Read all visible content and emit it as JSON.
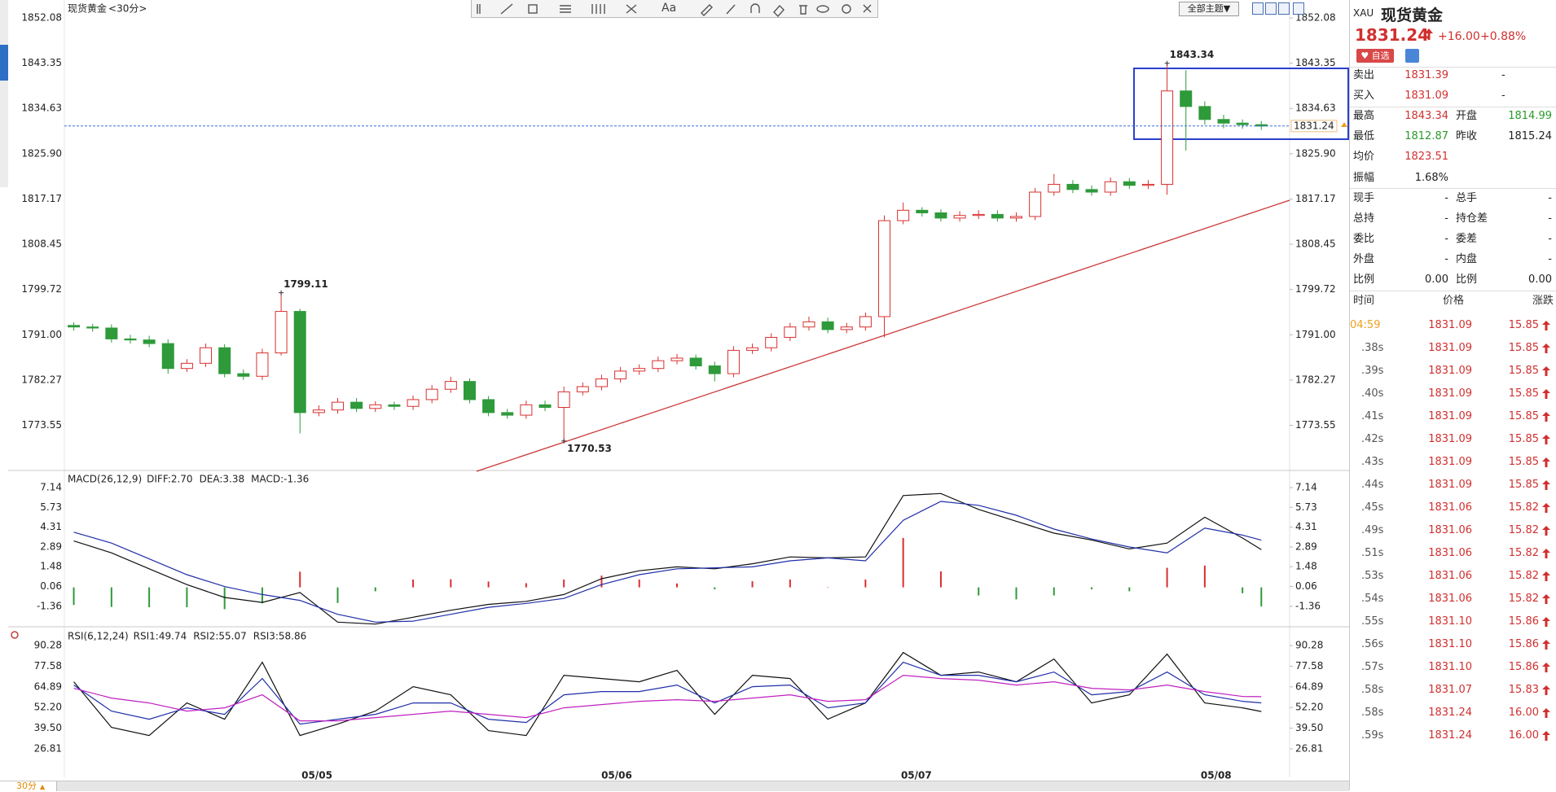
{
  "chart_data": [
    {
      "type": "candlestick",
      "title": "现货黄金",
      "subtitle": "<30分>",
      "up_color": "#d8302f",
      "down_color": "#2e9a3a",
      "xlim": [
        -0.5,
        64.5
      ],
      "ylim": [
        1764.84,
        1855.53
      ],
      "yticks": [
        1852.08,
        1843.35,
        1834.63,
        {
          "value": 1825.9,
          "label": "1825.90"
        },
        1817.17,
        1808.45,
        1799.72,
        {
          "value": 1791,
          "label": "1791.00"
        },
        1782.27,
        1773.55
      ],
      "open": [
        1792.8,
        1792.5,
        1792.3,
        1790.2,
        1790,
        1789.3,
        1784.5,
        1785.5,
        1788.5,
        1783.5,
        1783,
        1787.5,
        1795.5,
        1776,
        1776.5,
        1778,
        1776.8,
        1777.5,
        1777.2,
        1778.5,
        1780.5,
        1782,
        1778.5,
        1776,
        1775.5,
        1777.5,
        1777,
        1780,
        1781,
        1782.5,
        1784,
        1784.5,
        1786,
        1786.5,
        1785,
        1783.5,
        1788,
        1788.5,
        1790.5,
        1792.5,
        1793.5,
        1792,
        1792.5,
        1794.5,
        1813,
        1815,
        1814.5,
        1813.5,
        1814,
        1814.2,
        1813.5,
        1813.8,
        1818.5,
        1820,
        1819,
        1818.5,
        1820.5,
        1819.8,
        1820,
        1838,
        1835,
        1832.5,
        1831.8,
        1831.5
      ],
      "high": [
        1793.4,
        1793.1,
        1793.0,
        1791.0,
        1790.8,
        1790.1,
        1786.3,
        1789.3,
        1789.2,
        1784.3,
        1788.3,
        1799.11,
        1796.0,
        1777.4,
        1778.8,
        1778.8,
        1778.2,
        1778.1,
        1779.3,
        1781.3,
        1782.9,
        1782.6,
        1779.2,
        1776.7,
        1778.3,
        1778.3,
        1781.0,
        1781.8,
        1783.3,
        1784.8,
        1785.3,
        1786.8,
        1787.3,
        1787.2,
        1785.8,
        1788.8,
        1789.3,
        1791.3,
        1793.3,
        1794.5,
        1794.3,
        1793.3,
        1795.3,
        1814.0,
        1816.5,
        1815.6,
        1815.2,
        1814.8,
        1815.0,
        1815.0,
        1814.6,
        1819.3,
        1822.0,
        1820.8,
        1819.8,
        1821.3,
        1821.2,
        1820.8,
        1843.34,
        1842.0,
        1836.0,
        1833.4,
        1832.5,
        1832.2
      ],
      "low": [
        1791.8,
        1791.6,
        1789.5,
        1789.3,
        1788.6,
        1783.5,
        1783.8,
        1784.8,
        1782.8,
        1782.3,
        1782.3,
        1787.0,
        1772.0,
        1775.3,
        1775.8,
        1776.1,
        1776.1,
        1776.5,
        1776.5,
        1777.8,
        1779.8,
        1777.8,
        1775.3,
        1774.8,
        1774.8,
        1776.3,
        1770.53,
        1779.3,
        1780.3,
        1781.8,
        1783.3,
        1783.8,
        1785.3,
        1784.3,
        1782.0,
        1782.8,
        1787.3,
        1787.8,
        1789.8,
        1791.8,
        1791.3,
        1791.3,
        1791.8,
        1790.5,
        1812.3,
        1813.8,
        1812.8,
        1812.8,
        1813.3,
        1812.8,
        1812.8,
        1813.1,
        1817.8,
        1818.3,
        1817.8,
        1817.8,
        1819.1,
        1819.1,
        1818.0,
        1826.5,
        1831.5,
        1830.8,
        1830.7,
        1830.5
      ],
      "close": [
        1792.5,
        1792.3,
        1790.2,
        1790,
        1789.3,
        1784.5,
        1785.5,
        1788.5,
        1783.5,
        1783,
        1787.5,
        1795.5,
        1776,
        1776.5,
        1778,
        1776.8,
        1777.5,
        1777.2,
        1778.5,
        1780.5,
        1782,
        1778.5,
        1776,
        1775.5,
        1777.5,
        1777,
        1780,
        1781,
        1782.5,
        1784,
        1784.5,
        1786,
        1786.5,
        1785,
        1783.5,
        1788,
        1788.5,
        1790.5,
        1792.5,
        1793.5,
        1792,
        1792.5,
        1794.5,
        1813,
        1815,
        1814.5,
        1813.5,
        1814,
        1814.2,
        1813.5,
        1813.8,
        1818.5,
        1820,
        1819,
        1818.5,
        1820.5,
        1819.8,
        1820,
        1838,
        1835,
        1832.5,
        1831.8,
        1831.5,
        1831.24
      ],
      "high_labels": [
        1799.11,
        1843.34
      ],
      "low_labels": [
        1770.53
      ]
    },
    {
      "type": "macd",
      "title": "MACD(26,12,9)",
      "bar_up_color": "#d8302f",
      "bar_down_color": "#2e9a3a",
      "xlim": [
        -0.5,
        64.5
      ],
      "ylim": [
        -2.82,
        8.25
      ],
      "yticks": [
        7.14,
        5.73,
        4.31,
        2.89,
        1.48,
        0.06,
        -1.36
      ],
      "x": [
        0,
        2,
        4,
        6,
        8,
        10,
        12,
        14,
        16,
        18,
        20,
        22,
        24,
        26,
        28,
        30,
        32,
        34,
        36,
        38,
        40,
        42,
        44,
        46,
        48,
        50,
        52,
        54,
        56,
        58,
        60,
        62,
        63
      ],
      "series": [
        {
          "name": "DIFF:2.70",
          "style": "line",
          "color": "#111111",
          "values": [
            3.32,
            2.47,
            1.33,
            0.2,
            -0.72,
            -1.08,
            -0.37,
            -2.49,
            -2.63,
            -2.14,
            -1.64,
            -1.22,
            -1.0,
            -0.51,
            0.62,
            1.19,
            1.47,
            1.33,
            1.69,
            2.18,
            2.11,
            2.18,
            6.57,
            6.72,
            5.58,
            4.73,
            3.88,
            3.39,
            2.75,
            3.17,
            5.02,
            3.53,
            2.7
          ]
        },
        {
          "name": "DEA:3.38",
          "style": "line",
          "color": "#1f2ea8",
          "values": [
            3.95,
            3.17,
            2.04,
            0.91,
            0.06,
            -0.51,
            -0.93,
            -1.93,
            -2.49,
            -2.42,
            -1.93,
            -1.43,
            -1.15,
            -0.79,
            0.2,
            0.91,
            1.33,
            1.4,
            1.47,
            1.9,
            2.11,
            1.9,
            4.8,
            6.15,
            5.87,
            5.16,
            4.17,
            3.46,
            2.89,
            2.47,
            4.24,
            3.74,
            3.38
          ]
        },
        {
          "name": "MACD:-1.36",
          "style": "bar",
          "color": "#d020d0",
          "values": [
            -1.26,
            -1.4,
            -1.42,
            -1.42,
            -1.56,
            -1.14,
            1.12,
            -1.12,
            -0.28,
            0.56,
            0.58,
            0.42,
            0.3,
            0.56,
            0.84,
            0.56,
            0.28,
            -0.14,
            0.44,
            0.56,
            0,
            0.56,
            3.54,
            1.14,
            -0.58,
            -0.86,
            -0.58,
            -0.14,
            -0.28,
            1.4,
            1.56,
            -0.42,
            -1.36
          ]
        }
      ]
    },
    {
      "type": "rsi",
      "title": "RSI(6,12,24)",
      "xlim": [
        -0.5,
        64.5
      ],
      "ylim": [
        9.3,
        100.8
      ],
      "yticks": [
        90.28,
        77.58,
        64.89,
        {
          "value": 52.2,
          "label": "52.20"
        },
        {
          "value": 39.5,
          "label": "39.50"
        },
        26.81
      ],
      "xticks": [
        {
          "value": 12.9,
          "label": "05/05"
        },
        {
          "value": 28.8,
          "label": "05/06"
        },
        {
          "value": 44.7,
          "label": "05/07"
        },
        {
          "value": 60.6,
          "label": "05/08"
        }
      ],
      "x": [
        0,
        2,
        4,
        6,
        8,
        10,
        12,
        14,
        16,
        18,
        20,
        22,
        24,
        26,
        28,
        30,
        32,
        34,
        36,
        38,
        40,
        42,
        44,
        46,
        48,
        50,
        52,
        54,
        56,
        58,
        60,
        62,
        63
      ],
      "series": [
        {
          "name": "RSI1:49.74",
          "style": "line",
          "color": "#111111",
          "values": [
            68,
            40,
            35,
            55,
            45,
            80,
            35,
            42,
            50,
            65,
            60,
            38,
            35,
            72,
            70,
            68,
            75,
            48,
            72,
            70,
            45,
            55,
            86,
            72,
            74,
            68,
            82,
            55,
            60,
            85,
            55,
            52,
            49.74
          ]
        },
        {
          "name": "RSI2:55.07",
          "style": "line",
          "color": "#1f2ea8",
          "values": [
            66,
            50,
            45,
            52,
            48,
            70,
            42,
            45,
            48,
            55,
            55,
            45,
            43,
            60,
            62,
            62,
            66,
            55,
            65,
            66,
            52,
            55,
            80,
            72,
            72,
            68,
            74,
            60,
            62,
            74,
            60,
            56,
            55.07
          ]
        },
        {
          "name": "RSI3:58.86",
          "style": "line",
          "color": "#c020c0",
          "values": [
            64,
            58,
            55,
            50,
            52,
            60,
            44,
            44,
            46,
            48,
            50,
            48,
            46,
            52,
            54,
            56,
            57,
            56,
            58,
            60,
            56,
            57,
            72,
            70,
            69,
            66,
            68,
            64,
            63,
            66,
            62,
            59,
            58.86
          ]
        }
      ]
    }
  ],
  "toolbar": {
    "font": "Aa",
    "theme": "全部主题▼"
  },
  "period": "30分",
  "quote": {
    "symbol": "XAU",
    "name": "现货黄金",
    "price": "1831.24",
    "change": "+16.00",
    "change_pct": "+0.88%",
    "watch": "自选",
    "rows": [
      [
        "卖出",
        "1831.39",
        "-"
      ],
      [
        "买入",
        "1831.09",
        "-"
      ],
      [
        "最高",
        "1843.34",
        "开盘",
        "1814.99"
      ],
      [
        "最低",
        "1812.87",
        "昨收",
        "1815.24"
      ],
      [
        "均价",
        "1823.51"
      ],
      [
        "振幅",
        "1.68%"
      ],
      [
        "现手",
        "-",
        "总手",
        "-"
      ],
      [
        "总持",
        "-",
        "持仓差",
        "-"
      ],
      [
        "委比",
        "-",
        "委差",
        "-"
      ],
      [
        "外盘",
        "-",
        "内盘",
        "-"
      ],
      [
        "比例",
        "0.00",
        "比例",
        "0.00"
      ]
    ]
  },
  "trades": {
    "header": [
      "时间",
      "价格",
      "涨跌"
    ],
    "rows": [
      [
        "04:59",
        "1831.09",
        "15.85"
      ],
      [
        ".38s",
        "1831.09",
        "15.85"
      ],
      [
        ".39s",
        "1831.09",
        "15.85"
      ],
      [
        ".40s",
        "1831.09",
        "15.85"
      ],
      [
        ".41s",
        "1831.09",
        "15.85"
      ],
      [
        ".42s",
        "1831.09",
        "15.85"
      ],
      [
        ".43s",
        "1831.09",
        "15.85"
      ],
      [
        ".44s",
        "1831.09",
        "15.85"
      ],
      [
        ".45s",
        "1831.06",
        "15.82"
      ],
      [
        ".49s",
        "1831.06",
        "15.82"
      ],
      [
        ".51s",
        "1831.06",
        "15.82"
      ],
      [
        ".53s",
        "1831.06",
        "15.82"
      ],
      [
        ".54s",
        "1831.06",
        "15.82"
      ],
      [
        ".55s",
        "1831.10",
        "15.86"
      ],
      [
        ".56s",
        "1831.10",
        "15.86"
      ],
      [
        ".57s",
        "1831.10",
        "15.86"
      ],
      [
        ".58s",
        "1831.07",
        "15.83"
      ],
      [
        ".58s",
        "1831.24",
        "16.00"
      ],
      [
        ".59s",
        "1831.24",
        "16.00"
      ]
    ]
  }
}
